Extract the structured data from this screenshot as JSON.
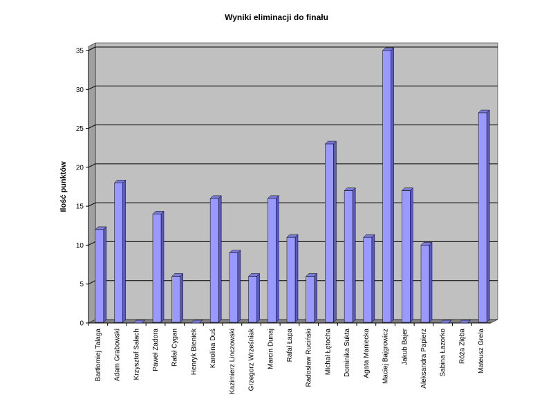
{
  "chart_data": {
    "type": "bar3d",
    "title": "Wyniki eliminacji do finału",
    "y_label": "Ilość punktów",
    "categories": [
      "Bartłomiej Talaga",
      "Adam Grabowski",
      "Krzysztof Sałach",
      "Paweł Zadora",
      "Rafał Cygan",
      "Henryk Bieniek",
      "Karolina Duś",
      "Kazimierz Linczowski",
      "Grzegorz Wrześniak",
      "Marcin Dunaj",
      "Rafał Łapa",
      "Radosław Ruciński",
      "Michał Łętocha",
      "Dominika Sukta",
      "Agata Maniecka",
      "Maciej Bajgrowicz",
      "Jakub Bajer",
      "Aleksandra Papierz",
      "Sabina Łazorko",
      "Róża Zięba",
      "Mateusz Grela"
    ],
    "values": [
      12,
      18,
      0,
      14,
      6,
      0,
      16,
      9,
      6,
      16,
      11,
      6,
      23,
      17,
      11,
      35,
      17,
      10,
      0,
      0,
      27
    ],
    "color": "#9999ff",
    "ylim": [
      0,
      35
    ],
    "yticks": [
      0,
      5,
      10,
      15,
      20,
      25,
      30,
      35
    ],
    "grid": true
  }
}
